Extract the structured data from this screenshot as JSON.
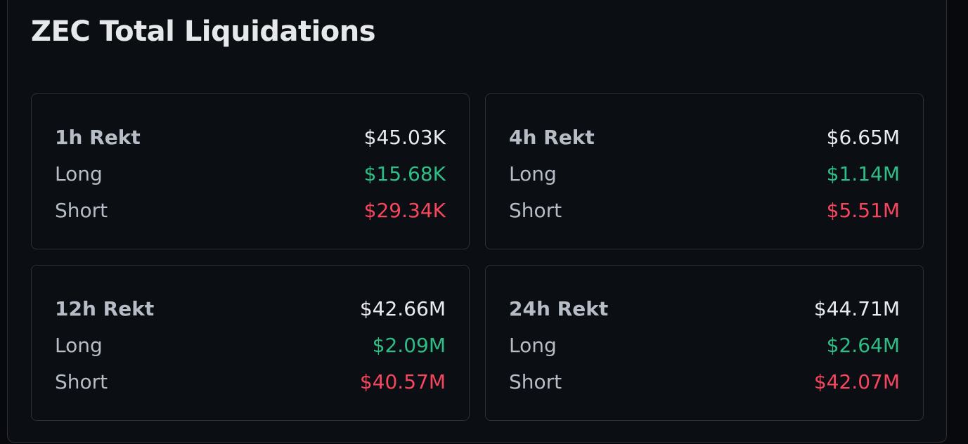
{
  "header": {
    "title": "ZEC Total Liquidations"
  },
  "cards": [
    {
      "label": "1h Rekt",
      "total": "$45.03K",
      "long_label": "Long",
      "long": "$15.68K",
      "short_label": "Short",
      "short": "$29.34K"
    },
    {
      "label": "4h Rekt",
      "total": "$6.65M",
      "long_label": "Long",
      "long": "$1.14M",
      "short_label": "Short",
      "short": "$5.51M"
    },
    {
      "label": "12h Rekt",
      "total": "$42.66M",
      "long_label": "Long",
      "long": "$2.09M",
      "short_label": "Short",
      "short": "$40.57M"
    },
    {
      "label": "24h Rekt",
      "total": "$44.71M",
      "long_label": "Long",
      "long": "$2.64M",
      "short_label": "Short",
      "short": "$42.07M"
    }
  ]
}
